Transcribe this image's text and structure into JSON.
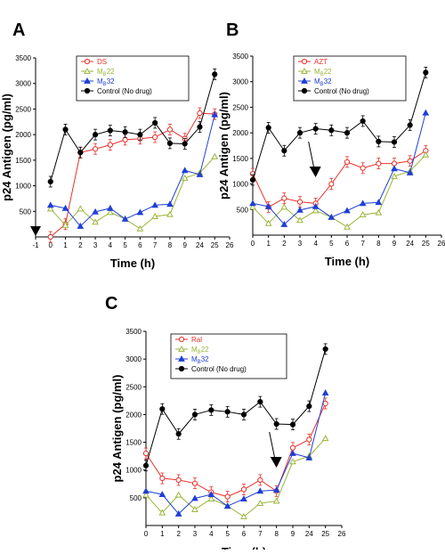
{
  "figure": {
    "panels": [
      "A",
      "B",
      "C"
    ]
  },
  "chart_data": [
    {
      "type": "line",
      "panel": "A",
      "xlabel": "Time (h)",
      "ylabel": "p24 Antigen (pg/ml)",
      "categories": [
        "-1",
        "0",
        "1",
        "2",
        "3",
        "4",
        "5",
        "6",
        "7",
        "8",
        "9",
        "24",
        "25",
        "26"
      ],
      "ylim": [
        0,
        3500
      ],
      "yticks": [
        500,
        1000,
        1500,
        2000,
        2500,
        3000,
        3500
      ],
      "grid": false,
      "legend_position": "top-left",
      "series": [
        {
          "name": "DS",
          "color": "#e8312b",
          "marker": "circle-open",
          "x": [
            "0",
            "1",
            "2",
            "3",
            "4",
            "5",
            "6",
            "7",
            "8",
            "9",
            "24",
            "25"
          ],
          "values": [
            0,
            250,
            1650,
            1720,
            1800,
            1900,
            1920,
            1950,
            2100,
            1920,
            2420,
            2400
          ]
        },
        {
          "name": "MB22",
          "color": "#9bb53a",
          "marker": "triangle-open",
          "x": [
            "0",
            "1",
            "2",
            "3",
            "4",
            "5",
            "6",
            "7",
            "8",
            "9",
            "24",
            "25"
          ],
          "values": [
            550,
            230,
            550,
            290,
            480,
            350,
            160,
            400,
            440,
            1150,
            1250,
            1570
          ]
        },
        {
          "name": "MB32",
          "color": "#1f3fd6",
          "marker": "triangle-filled",
          "x": [
            "0",
            "1",
            "2",
            "3",
            "4",
            "5",
            "6",
            "7",
            "8",
            "9",
            "24",
            "25"
          ],
          "values": [
            620,
            560,
            210,
            490,
            560,
            350,
            480,
            620,
            640,
            1300,
            1220,
            2390
          ]
        },
        {
          "name": "Control (No drug)",
          "color": "#000000",
          "marker": "circle-filled",
          "x": [
            "0",
            "1",
            "2",
            "3",
            "4",
            "5",
            "6",
            "7",
            "8",
            "9",
            "24",
            "25"
          ],
          "values": [
            1080,
            2100,
            1650,
            2000,
            2080,
            2050,
            2000,
            2230,
            1830,
            1820,
            2150,
            3180
          ]
        }
      ],
      "legend_subscripts": {
        "MB22": [
          "M",
          "B",
          "22"
        ],
        "MB32": [
          "M",
          "B",
          "32"
        ]
      },
      "annotations": [
        {
          "type": "arrow",
          "style": "filled",
          "at_x": "-1"
        }
      ]
    },
    {
      "type": "line",
      "panel": "B",
      "xlabel": "Time (h)",
      "ylabel": "p24 Antigen (pg/ml)",
      "categories": [
        "0",
        "1",
        "2",
        "3",
        "4",
        "5",
        "6",
        "7",
        "8",
        "9",
        "24",
        "25",
        "26"
      ],
      "ylim": [
        0,
        3500
      ],
      "yticks": [
        500,
        1000,
        1500,
        2000,
        2500,
        3000,
        3500
      ],
      "grid": false,
      "legend_position": "top-left",
      "series": [
        {
          "name": "AZT",
          "color": "#e8312b",
          "marker": "circle-open",
          "x": [
            "0",
            "1",
            "2",
            "3",
            "4",
            "5",
            "6",
            "7",
            "8",
            "9",
            "24",
            "25"
          ],
          "values": [
            1200,
            550,
            720,
            650,
            620,
            1000,
            1430,
            1310,
            1400,
            1400,
            1450,
            1650
          ]
        },
        {
          "name": "MB22",
          "color": "#9bb53a",
          "marker": "triangle-open",
          "x": [
            "0",
            "1",
            "2",
            "3",
            "4",
            "5",
            "6",
            "7",
            "8",
            "9",
            "24",
            "25"
          ],
          "values": [
            550,
            230,
            550,
            290,
            480,
            350,
            160,
            400,
            440,
            1150,
            1250,
            1570
          ]
        },
        {
          "name": "MB32",
          "color": "#1f3fd6",
          "marker": "triangle-filled",
          "x": [
            "0",
            "1",
            "2",
            "3",
            "4",
            "5",
            "6",
            "7",
            "8",
            "9",
            "24",
            "25"
          ],
          "values": [
            620,
            560,
            210,
            490,
            560,
            350,
            480,
            620,
            640,
            1300,
            1220,
            2390
          ]
        },
        {
          "name": "Control (No drug)",
          "color": "#000000",
          "marker": "circle-filled",
          "x": [
            "0",
            "1",
            "2",
            "3",
            "4",
            "5",
            "6",
            "7",
            "8",
            "9",
            "24",
            "25"
          ],
          "values": [
            1080,
            2100,
            1650,
            2000,
            2080,
            2050,
            2000,
            2230,
            1830,
            1820,
            2150,
            3180
          ]
        }
      ],
      "legend_subscripts": {
        "MB22": [
          "M",
          "B",
          "22"
        ],
        "MB32": [
          "M",
          "B",
          "32"
        ]
      },
      "annotations": [
        {
          "type": "arrow",
          "style": "line",
          "at_x": "4"
        }
      ]
    },
    {
      "type": "line",
      "panel": "C",
      "xlabel": "Time (h)",
      "ylabel": "p24 Antigen (pg/ml)",
      "categories": [
        "0",
        "1",
        "2",
        "3",
        "4",
        "5",
        "6",
        "7",
        "8",
        "9",
        "24",
        "25",
        "26"
      ],
      "ylim": [
        0,
        3500
      ],
      "yticks": [
        500,
        1000,
        1500,
        2000,
        2500,
        3000,
        3500
      ],
      "grid": false,
      "legend_position": "top-left",
      "series": [
        {
          "name": "Ral",
          "color": "#e8312b",
          "marker": "circle-open",
          "x": [
            "0",
            "1",
            "2",
            "3",
            "4",
            "5",
            "6",
            "7",
            "8",
            "9",
            "24",
            "25"
          ],
          "values": [
            1300,
            850,
            820,
            760,
            600,
            520,
            650,
            820,
            620,
            1400,
            1550,
            2200
          ]
        },
        {
          "name": "MB22",
          "color": "#9bb53a",
          "marker": "triangle-open",
          "x": [
            "0",
            "1",
            "2",
            "3",
            "4",
            "5",
            "6",
            "7",
            "8",
            "9",
            "24",
            "25"
          ],
          "values": [
            550,
            230,
            550,
            290,
            480,
            350,
            160,
            400,
            440,
            1150,
            1250,
            1570
          ]
        },
        {
          "name": "MB32",
          "color": "#1f3fd6",
          "marker": "triangle-filled",
          "x": [
            "0",
            "1",
            "2",
            "3",
            "4",
            "5",
            "6",
            "7",
            "8",
            "9",
            "24",
            "25"
          ],
          "values": [
            620,
            560,
            210,
            490,
            560,
            350,
            480,
            620,
            640,
            1300,
            1220,
            2390
          ]
        },
        {
          "name": "Control (No drug)",
          "color": "#000000",
          "marker": "circle-filled",
          "x": [
            "0",
            "1",
            "2",
            "3",
            "4",
            "5",
            "6",
            "7",
            "8",
            "9",
            "24",
            "25"
          ],
          "values": [
            1080,
            2100,
            1650,
            2000,
            2080,
            2050,
            2000,
            2230,
            1830,
            1820,
            2150,
            3180
          ]
        }
      ],
      "legend_subscripts": {
        "MB22": [
          "M",
          "B",
          "22"
        ],
        "MB32": [
          "M",
          "B",
          "32"
        ]
      },
      "annotations": [
        {
          "type": "arrow",
          "style": "line",
          "at_x": "8"
        }
      ]
    }
  ]
}
